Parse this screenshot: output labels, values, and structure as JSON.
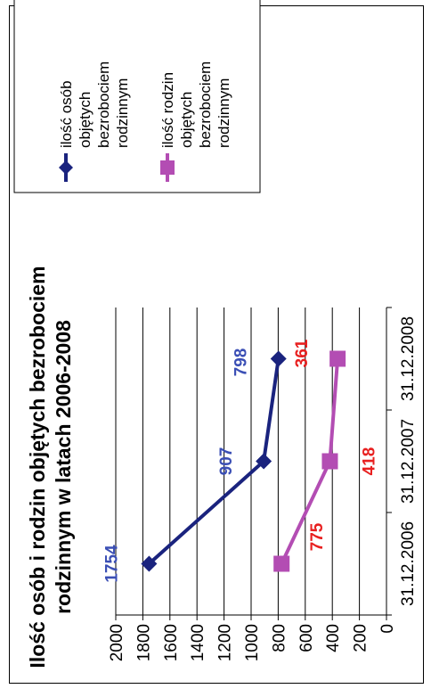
{
  "chart_data": {
    "type": "line",
    "title_lines": [
      "Ilość osób i rodzin objętych bezrobociem",
      "rodzinnym w latach 2006-2008"
    ],
    "categories": [
      "31.12.2006",
      "31.12.2007",
      "31.12.2008"
    ],
    "ylim": [
      0,
      2000
    ],
    "yticks": [
      "0",
      "200",
      "400",
      "600",
      "800",
      "1000",
      "1200",
      "1400",
      "1600",
      "1800",
      "2000"
    ],
    "grid": true,
    "legend_position": "right",
    "series": [
      {
        "name_lines": [
          "ilość osób",
          "objętych",
          "bezrobociem",
          "rodzinnym"
        ],
        "values": [
          1754,
          907,
          798
        ],
        "labels": [
          "1754",
          "907",
          "798"
        ],
        "color": "#1a237e",
        "label_color": "#3b4fb5",
        "marker": "diamond"
      },
      {
        "name_lines": [
          "ilość rodzin",
          "objętych",
          "bezrobociem",
          "rodzinnym"
        ],
        "values": [
          775,
          418,
          361
        ],
        "labels": [
          "775",
          "418",
          "361"
        ],
        "color": "#b34db3",
        "label_color": "#e82020",
        "marker": "square"
      }
    ]
  }
}
